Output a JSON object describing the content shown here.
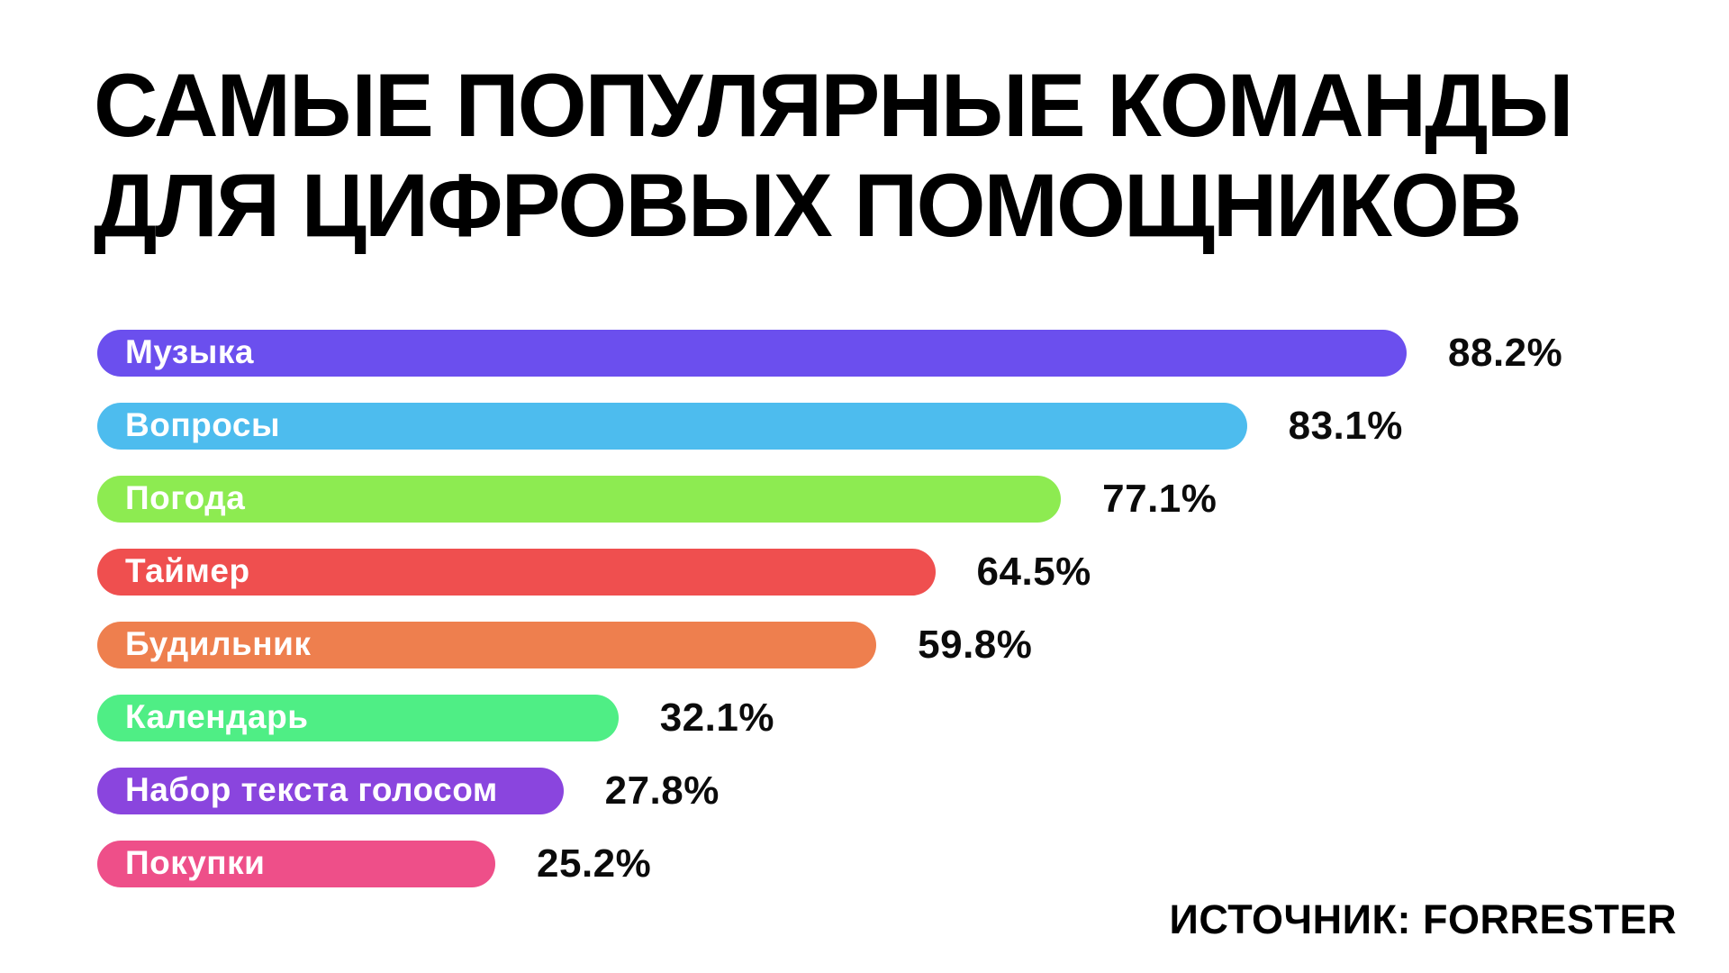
{
  "page": {
    "title_line1": "САМЫЕ ПОПУЛЯРНЫЕ КОМАНДЫ",
    "title_line2": "ДЛЯ ЦИФРОВЫХ ПОМОЩНИКОВ",
    "source": "ИСТОЧНИК: FORRESTER"
  },
  "chart_data": {
    "type": "bar",
    "orientation": "horizontal",
    "title": "САМЫЕ ПОПУЛЯРНЫЕ КОМАНДЫ ДЛЯ ЦИФРОВЫХ ПОМОЩНИКОВ",
    "source": "ИСТОЧНИК: FORRESTER",
    "xlim": [
      0,
      100
    ],
    "grid": false,
    "legend": false,
    "value_suffix": "%",
    "categories": [
      "Музыка",
      "Вопросы",
      "Погода",
      "Таймер",
      "Будильник",
      "Календарь",
      "Набор текста голосом",
      "Покупки"
    ],
    "values": [
      88.2,
      83.1,
      77.1,
      64.5,
      59.8,
      32.1,
      27.8,
      25.2
    ],
    "bars": [
      {
        "label": "Музыка",
        "value": 88.2,
        "display_value": "88.2%",
        "color": "#6B4FEE",
        "length_pct": 100.0
      },
      {
        "label": "Вопросы",
        "value": 83.1,
        "display_value": "83.1%",
        "color": "#4DBCEE",
        "length_pct": 87.8
      },
      {
        "label": "Погода",
        "value": 77.1,
        "display_value": "77.1%",
        "color": "#8DEB51",
        "length_pct": 73.6
      },
      {
        "label": "Таймер",
        "value": 64.5,
        "display_value": "64.5%",
        "color": "#EF4F4F",
        "length_pct": 64.0
      },
      {
        "label": "Будильник",
        "value": 59.8,
        "display_value": "59.8%",
        "color": "#EE7F4E",
        "length_pct": 59.5
      },
      {
        "label": "Календарь",
        "value": 32.1,
        "display_value": "32.1%",
        "color": "#4FEE85",
        "length_pct": 39.8
      },
      {
        "label": "Набор текста голосом",
        "value": 27.8,
        "display_value": "27.8%",
        "color": "#8A45DE",
        "length_pct": 35.6
      },
      {
        "label": "Покупки",
        "value": 25.2,
        "display_value": "25.2%",
        "color": "#EE4F89",
        "length_pct": 30.4
      }
    ]
  }
}
